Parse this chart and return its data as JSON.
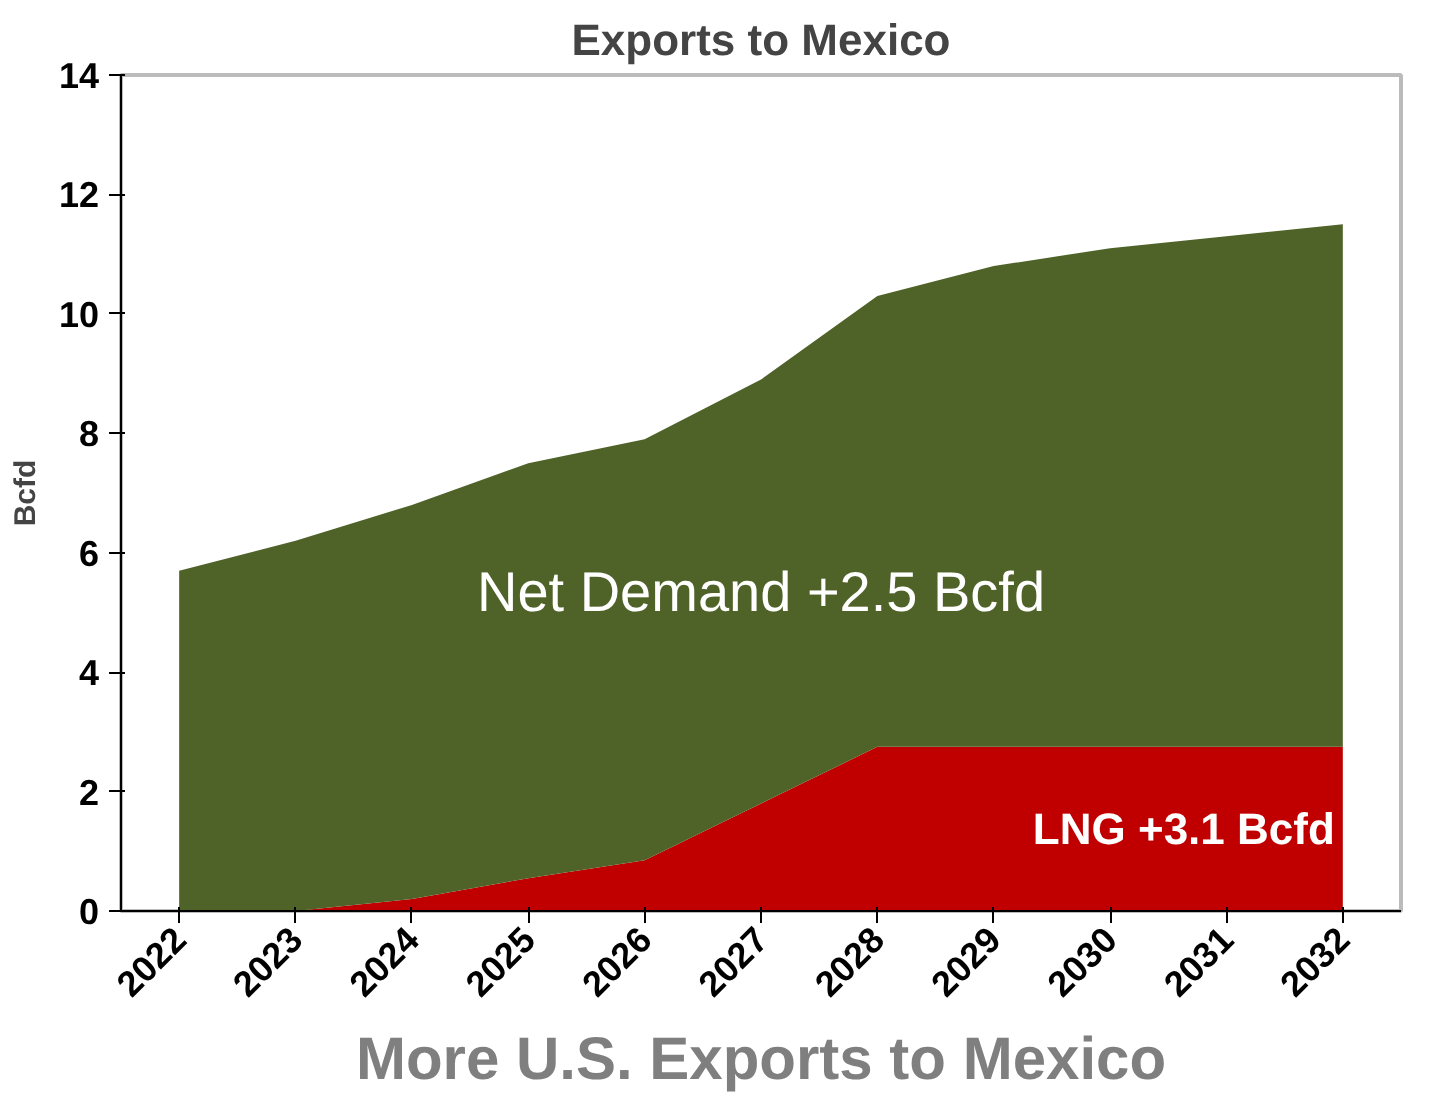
{
  "chart_data": {
    "type": "area",
    "stacked": true,
    "title": "Exports to Mexico",
    "ylabel": "Bcfd",
    "categories": [
      "2022",
      "2023",
      "2024",
      "2025",
      "2026",
      "2027",
      "2028",
      "2029",
      "2030",
      "2031",
      "2032"
    ],
    "series": [
      {
        "name": "LNG +3.1 Bcfd",
        "color": "#c00000",
        "values": [
          0,
          0,
          0.2,
          0.55,
          0.85,
          1.8,
          2.75,
          2.75,
          2.75,
          2.75,
          2.75
        ]
      },
      {
        "name": "Net Demand +2.5 Bcfd",
        "color": "#4f6228",
        "values": [
          5.7,
          6.2,
          6.6,
          6.95,
          7.05,
          7.1,
          7.55,
          8.05,
          8.35,
          8.55,
          8.75
        ]
      }
    ],
    "ylim": [
      0,
      14
    ],
    "yticks": [
      0,
      2,
      4,
      6,
      8,
      10,
      12,
      14
    ],
    "grid": false,
    "annotations": [
      "More U.S. Exports to Mexico"
    ]
  }
}
